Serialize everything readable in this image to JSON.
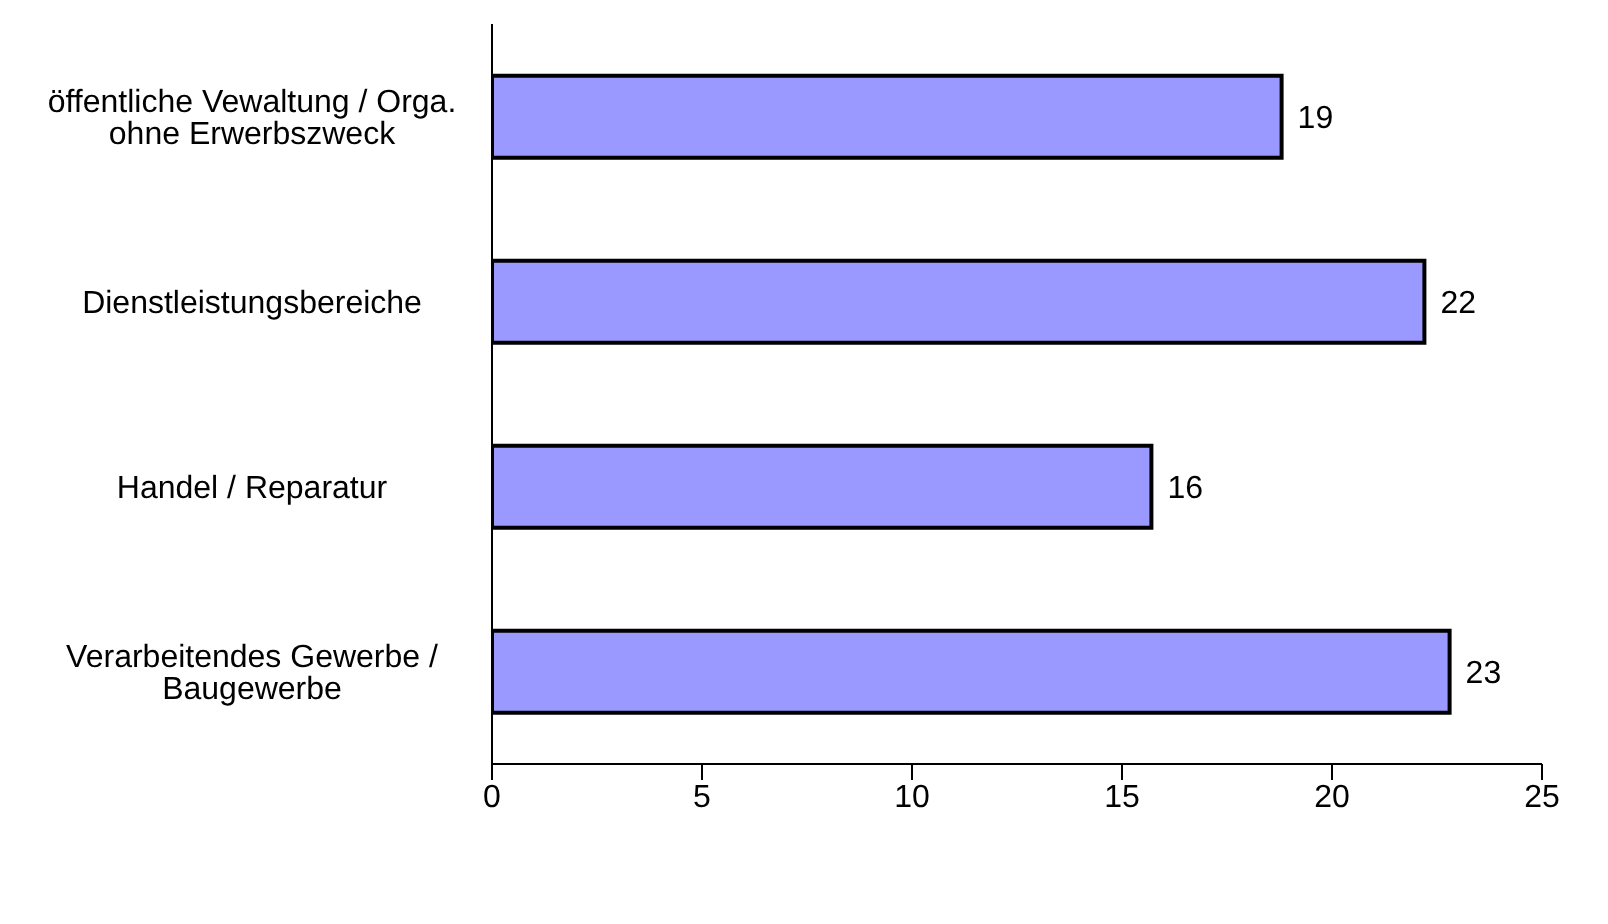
{
  "chart_data": {
    "type": "bar",
    "orientation": "horizontal",
    "categories": [
      "öffentliche Vewaltung / Orga. ohne Erwerbszweck",
      "Dienstleistungsbereiche",
      "Handel / Reparatur",
      "Verarbeitendes Gewerbe / Baugewerbe"
    ],
    "values": [
      18.8,
      22.2,
      15.7,
      22.8
    ],
    "value_labels": [
      "19",
      "22",
      "16",
      "23"
    ],
    "color": "#9999ff",
    "xlim": [
      0,
      25
    ],
    "xticks": [
      0,
      5,
      10,
      15,
      20,
      25
    ],
    "grid": false,
    "legend": false
  }
}
